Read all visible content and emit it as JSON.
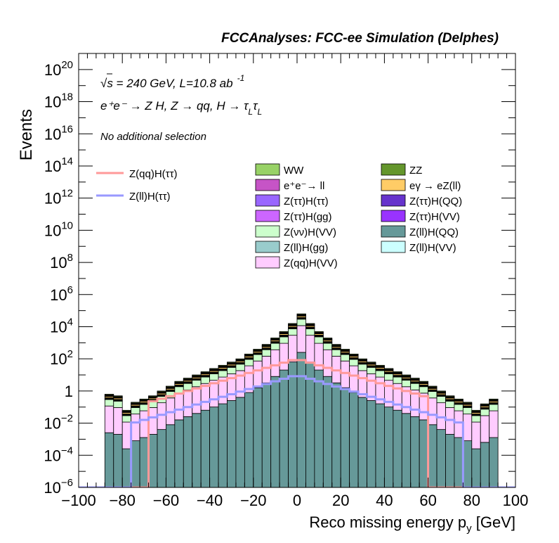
{
  "chart_data": {
    "type": "bar",
    "stacked": true,
    "title": "FCCAnalyses: FCC-ee Simulation (Delphes)",
    "ylabel": "Events",
    "xlabel_main": "Reco missing energy p",
    "xlabel_sub": "y",
    "xlabel_unit": " [GeV]",
    "y_scale": "log",
    "xlim": [
      -100,
      100
    ],
    "ylim": [
      1e-06,
      1e+21
    ],
    "annotations": {
      "energy_line": "√s = 240 GeV, L=10.8 ab",
      "energy_sup": "-1",
      "process_line": "e⁺e⁻ → Z H, Z → qq, H → τ",
      "process_sub1": "L",
      "process_tau2": "τ",
      "process_sub2": "L",
      "selection": "No additional selection"
    },
    "x_ticks": [
      "−100",
      "−80",
      "−60",
      "−40",
      "−20",
      "0",
      "20",
      "40",
      "60",
      "80",
      "100"
    ],
    "y_ticks": [
      {
        "base": "10",
        "exp": "−6"
      },
      {
        "base": "10",
        "exp": "−4"
      },
      {
        "base": "10",
        "exp": "−2"
      },
      {
        "base": "1",
        "exp": ""
      },
      {
        "base": "10",
        "exp": "2"
      },
      {
        "base": "10",
        "exp": "4"
      },
      {
        "base": "10",
        "exp": "6"
      },
      {
        "base": "10",
        "exp": "8"
      },
      {
        "base": "10",
        "exp": "10"
      },
      {
        "base": "10",
        "exp": "12"
      },
      {
        "base": "10",
        "exp": "14"
      },
      {
        "base": "10",
        "exp": "16"
      },
      {
        "base": "10",
        "exp": "18"
      },
      {
        "base": "10",
        "exp": "20"
      }
    ],
    "bin_edges_note": "50 bins of 4 GeV from -100 to 100",
    "stack_order": [
      "Z(ll)H(QQ)",
      "Z(qq)H(VV)",
      "Z(νν)H(VV)",
      "Z(ττ)H(gg)",
      "Z(ττ)H(ττ)",
      "Z(ll)H(VV)",
      "Z(ll)H(gg)",
      "eγ → eZ(ll)",
      "Z(ττ)H(QQ)",
      "Z(ττ)H(VV)",
      "e⁺e⁻→ ll",
      "WW",
      "ZZ"
    ],
    "stack_totals_log10": [
      -6,
      -6,
      -6,
      -0.2,
      -0.3,
      -1.2,
      -0.7,
      -0.5,
      -0.3,
      0,
      0.3,
      0.6,
      0.8,
      1.0,
      1.2,
      1.4,
      1.6,
      1.8,
      2.0,
      2.3,
      2.6,
      2.9,
      3.3,
      3.7,
      4.2,
      4.8,
      4.2,
      3.7,
      3.3,
      2.9,
      2.6,
      2.3,
      2.0,
      1.8,
      1.6,
      1.4,
      1.2,
      1.0,
      0.8,
      0.6,
      0.3,
      0,
      -0.3,
      -0.5,
      -0.7,
      -1.2,
      -0.8,
      -0.5,
      -6,
      -6
    ],
    "series": [
      {
        "name": "WW",
        "color": "#98d266",
        "legend_col": 0
      },
      {
        "name": "ZZ",
        "color": "#64962c",
        "legend_col": 1
      },
      {
        "name": "e⁺e⁻→ ll",
        "color": "#c654c6",
        "legend_col": 0
      },
      {
        "name": "eγ → eZ(ll)",
        "color": "#ffcc66",
        "legend_col": 1
      },
      {
        "name": "Z(ττ)H(ττ)",
        "color": "#9966ff",
        "legend_col": 0
      },
      {
        "name": "Z(ττ)H(QQ)",
        "color": "#6633cc",
        "legend_col": 1
      },
      {
        "name": "Z(ττ)H(gg)",
        "color": "#cc66ff",
        "legend_col": 0
      },
      {
        "name": "Z(ττ)H(VV)",
        "color": "#9933ff",
        "legend_col": 1
      },
      {
        "name": "Z(νν)H(VV)",
        "color": "#ccffcc",
        "legend_col": 0
      },
      {
        "name": "Z(ll)H(QQ)",
        "color": "#669999",
        "legend_col": 1
      },
      {
        "name": "Z(ll)H(gg)",
        "color": "#99cccc",
        "legend_col": 0
      },
      {
        "name": "Z(ll)H(VV)",
        "color": "#ccffff",
        "legend_col": 1
      },
      {
        "name": "Z(qq)H(VV)",
        "color": "#ffccff",
        "legend_col": 0
      }
    ],
    "signal_lines": [
      {
        "name": "Z(qq)H(ττ)",
        "color": "#ff9999",
        "x_range": [
          -68,
          60
        ],
        "peak_log10": 2.0
      },
      {
        "name": "Z(ll)H(ττ)",
        "color": "#9999ff",
        "x_range": [
          -76,
          76
        ],
        "peak_log10": 1.0
      }
    ],
    "legend_placement": "top-right, inside plot",
    "grid": false
  }
}
